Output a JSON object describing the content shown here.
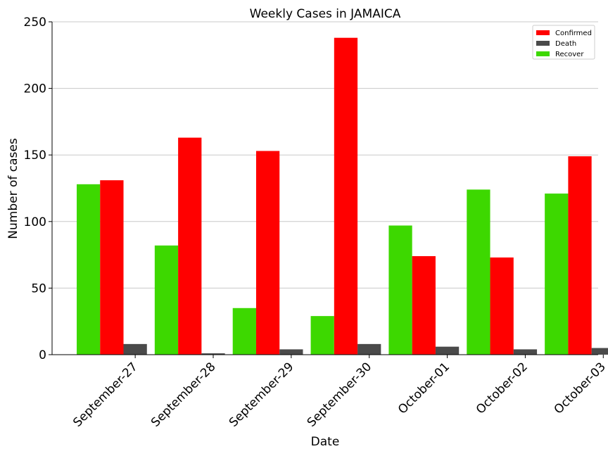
{
  "chart_data": {
    "type": "bar",
    "title": "Weekly Cases in JAMAICA",
    "xlabel": "Date",
    "ylabel": "Number of cases",
    "ylim": [
      0,
      250
    ],
    "yticks": [
      0,
      50,
      100,
      150,
      200,
      250
    ],
    "grid": "horizontal",
    "legend_position": "top-right",
    "categories": [
      "September-27",
      "September-28",
      "September-29",
      "September-30",
      "October-01",
      "October-02",
      "October-03"
    ],
    "series": [
      {
        "name": "Recover",
        "color": "#3dd800",
        "values": [
          128,
          82,
          35,
          29,
          97,
          124,
          121
        ]
      },
      {
        "name": "Confirmed",
        "color": "#ff0000",
        "values": [
          131,
          163,
          153,
          238,
          74,
          73,
          149
        ]
      },
      {
        "name": "Death",
        "color": "#4a4a4a",
        "values": [
          8,
          1,
          4,
          8,
          6,
          4,
          5
        ]
      }
    ],
    "legend_order": [
      "Confirmed",
      "Death",
      "Recover"
    ]
  }
}
